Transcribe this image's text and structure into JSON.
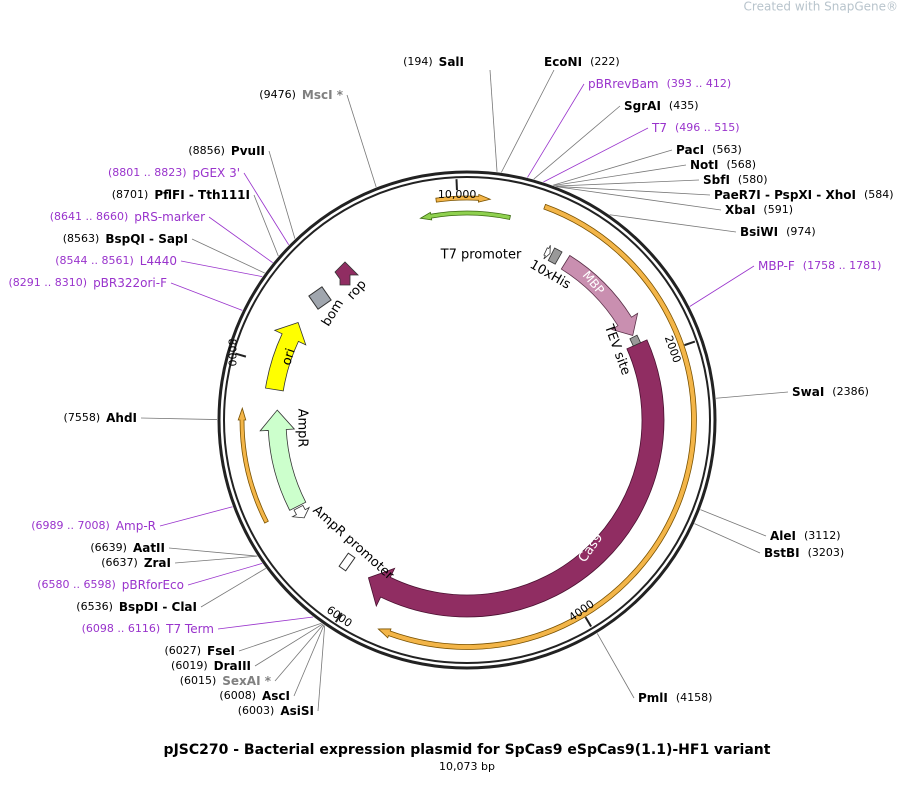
{
  "watermark": "Created with SnapGene®",
  "title": "pJSC270 - Bacterial expression plasmid for SpCas9 eSpCas9(1.1)-HF1 variant",
  "subtitle": "10,073 bp",
  "scale_labels": [
    "10,000",
    "2000",
    "4000",
    "6000",
    "8000"
  ],
  "features": [
    "T7 promoter",
    "10xHis",
    "MBP",
    "TEV site",
    "Cas9",
    "AmpR promoter",
    "AmpR",
    "ori",
    "bom",
    "rop"
  ],
  "sites": [
    {
      "name": "SalI",
      "position": "(194)"
    },
    {
      "name": "EcoNI",
      "position": "(222)"
    },
    {
      "name": "pBRrevBam",
      "position": "(393 .. 412)"
    },
    {
      "name": "SgrAI",
      "position": "(435)"
    },
    {
      "name": "T7",
      "position": "(496 .. 515)"
    },
    {
      "name": "PacI",
      "position": "(563)"
    },
    {
      "name": "NotI",
      "position": "(568)"
    },
    {
      "name": "SbfI",
      "position": "(580)"
    },
    {
      "name": "PaeR7I - PspXI - XhoI",
      "position": "(584)"
    },
    {
      "name": "XbaI",
      "position": "(591)"
    },
    {
      "name": "BsiWI",
      "position": "(974)"
    },
    {
      "name": "MBP-F",
      "position": "(1758 .. 1781)"
    },
    {
      "name": "SwaI",
      "position": "(2386)"
    },
    {
      "name": "AleI",
      "position": "(3112)"
    },
    {
      "name": "BstBI",
      "position": "(3203)"
    },
    {
      "name": "PmlI",
      "position": "(4158)"
    },
    {
      "name": "MscI *",
      "position": "(9476)"
    },
    {
      "name": "PvuII",
      "position": "(8856)"
    },
    {
      "name": "pGEX 3'",
      "position": "(8801 .. 8823)"
    },
    {
      "name": "PflFI - Tth111I",
      "position": "(8701)"
    },
    {
      "name": "pRS-marker",
      "position": "(8641 .. 8660)"
    },
    {
      "name": "BspQI - SapI",
      "position": "(8563)"
    },
    {
      "name": "L4440",
      "position": "(8544 .. 8561)"
    },
    {
      "name": "pBR322ori-F",
      "position": "(8291 .. 8310)"
    },
    {
      "name": "AhdI",
      "position": "(7558)"
    },
    {
      "name": "Amp-R",
      "position": "(6989 .. 7008)"
    },
    {
      "name": "AatII",
      "position": "(6639)"
    },
    {
      "name": "ZraI",
      "position": "(6637)"
    },
    {
      "name": "pBRforEco",
      "position": "(6580 .. 6598)"
    },
    {
      "name": "BspDI - ClaI",
      "position": "(6536)"
    },
    {
      "name": "T7 Term",
      "position": "(6098 .. 6116)"
    },
    {
      "name": "FseI",
      "position": "(6027)"
    },
    {
      "name": "DraIII",
      "position": "(6019)"
    },
    {
      "name": "SexAI *",
      "position": "(6015)"
    },
    {
      "name": "AscI",
      "position": "(6008)"
    },
    {
      "name": "AsiSI",
      "position": "(6003)"
    }
  ]
}
